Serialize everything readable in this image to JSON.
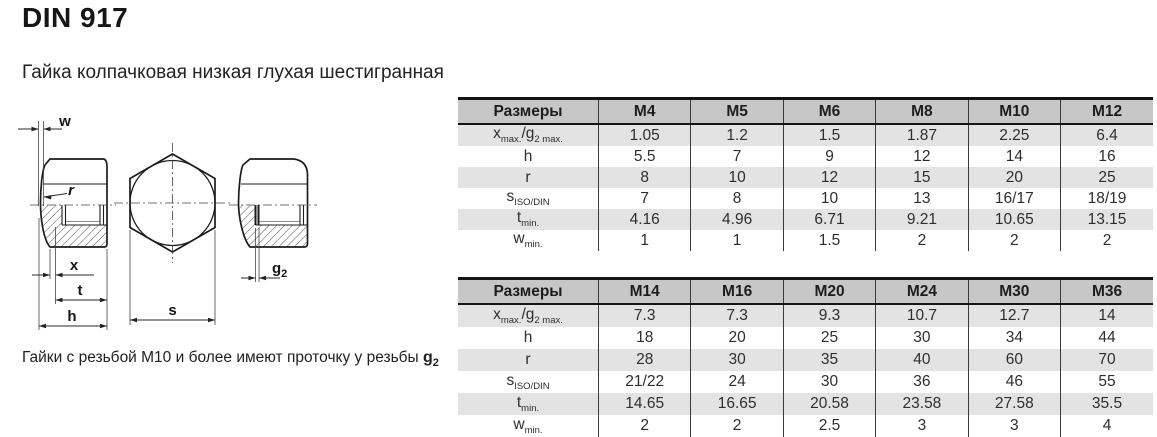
{
  "page": {
    "title": "DIN 917",
    "subtitle": "Гайка колпачковая низкая глухая шестигранная"
  },
  "note": {
    "text": "Гайки с резьбой M10 и более имеют проточку у резьбы ",
    "g_base": "g",
    "g_sub": "2"
  },
  "drawing": {
    "labels": {
      "w": "w",
      "r": "r",
      "x": "x",
      "t": "t",
      "h": "h",
      "s": "s",
      "g2_base": "g",
      "g2_sub": "2"
    }
  },
  "colors": {
    "table_header_bg": "#c7c7c7",
    "table_alt_row_bg": "#e3e3e3",
    "table_border": "#151515",
    "table_text": "#2e2e2e"
  },
  "tables": [
    {
      "header": [
        "Размеры",
        "M4",
        "M5",
        "M6",
        "M8",
        "M10",
        "M12"
      ],
      "rows": [
        {
          "label": [
            [
              "x",
              0
            ],
            [
              "max.",
              1
            ],
            [
              "/g",
              0
            ],
            [
              "2 max.",
              1
            ]
          ],
          "values": [
            "1.05",
            "1.2",
            "1.5",
            "1.87",
            "2.25",
            "6.4"
          ]
        },
        {
          "label": [
            [
              "h",
              0
            ]
          ],
          "values": [
            "5.5",
            "7",
            "9",
            "12",
            "14",
            "16"
          ]
        },
        {
          "label": [
            [
              "r",
              0
            ]
          ],
          "values": [
            "8",
            "10",
            "12",
            "15",
            "20",
            "25"
          ]
        },
        {
          "label": [
            [
              "s",
              0
            ],
            [
              "ISO/DIN",
              1
            ]
          ],
          "values": [
            "7",
            "8",
            "10",
            "13",
            "16/17",
            "18/19"
          ]
        },
        {
          "label": [
            [
              "t",
              0
            ],
            [
              "min.",
              1
            ]
          ],
          "values": [
            "4.16",
            "4.96",
            "6.71",
            "9.21",
            "10.65",
            "13.15"
          ]
        },
        {
          "label": [
            [
              "w",
              0
            ],
            [
              "min.",
              1
            ]
          ],
          "values": [
            "1",
            "1",
            "1.5",
            "2",
            "2",
            "2"
          ]
        }
      ]
    },
    {
      "header": [
        "Размеры",
        "M14",
        "M16",
        "M20",
        "M24",
        "M30",
        "M36"
      ],
      "rows": [
        {
          "label": [
            [
              "x",
              0
            ],
            [
              "max.",
              1
            ],
            [
              "/g",
              0
            ],
            [
              "2 max.",
              1
            ]
          ],
          "values": [
            "7.3",
            "7.3",
            "9.3",
            "10.7",
            "12.7",
            "14"
          ]
        },
        {
          "label": [
            [
              "h",
              0
            ]
          ],
          "values": [
            "18",
            "20",
            "25",
            "30",
            "34",
            "44"
          ]
        },
        {
          "label": [
            [
              "r",
              0
            ]
          ],
          "values": [
            "28",
            "30",
            "35",
            "40",
            "60",
            "70"
          ]
        },
        {
          "label": [
            [
              "s",
              0
            ],
            [
              "ISO/DIN",
              1
            ]
          ],
          "values": [
            "21/22",
            "24",
            "30",
            "36",
            "46",
            "55"
          ]
        },
        {
          "label": [
            [
              "t",
              0
            ],
            [
              "min.",
              1
            ]
          ],
          "values": [
            "14.65",
            "16.65",
            "20.58",
            "23.58",
            "27.58",
            "35.5"
          ]
        },
        {
          "label": [
            [
              "w",
              0
            ],
            [
              "min.",
              1
            ]
          ],
          "values": [
            "2",
            "2",
            "2.5",
            "3",
            "3",
            "4"
          ]
        }
      ]
    }
  ]
}
